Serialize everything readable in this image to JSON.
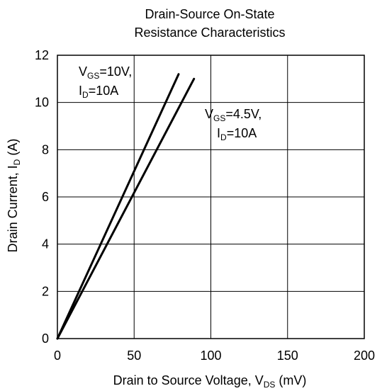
{
  "chart_data": {
    "type": "line",
    "title": [
      "Drain-Source On-State",
      "Resistance Characteristics"
    ],
    "xlabel": {
      "text": "Drain to Source Voltage, V",
      "sub": "DS",
      "suffix": " (mV)"
    },
    "ylabel": {
      "text": "Drain Current, I",
      "sub": "D",
      "suffix": " (A)"
    },
    "xlim": [
      0,
      200
    ],
    "ylim": [
      0,
      12
    ],
    "xticks": [
      0,
      50,
      100,
      150,
      200
    ],
    "yticks": [
      0,
      2,
      4,
      6,
      8,
      10,
      12
    ],
    "grid": true,
    "series": [
      {
        "name": "VGS=10V, ID=10A",
        "x": [
          0,
          79
        ],
        "y": [
          0,
          11.2
        ]
      },
      {
        "name": "VGS=4.5V, ID=10A",
        "x": [
          0,
          89
        ],
        "y": [
          0,
          11.0
        ]
      }
    ],
    "annotations": [
      {
        "line1": {
          "pre": "V",
          "sub": "GS",
          "post": "=10V,"
        },
        "line2": {
          "pre": "I",
          "sub": "D",
          "post": "=10A"
        }
      },
      {
        "line1": {
          "pre": "V",
          "sub": "GS",
          "post": "=4.5V,"
        },
        "line2": {
          "pre": "I",
          "sub": "D",
          "post": "=10A"
        }
      }
    ]
  }
}
